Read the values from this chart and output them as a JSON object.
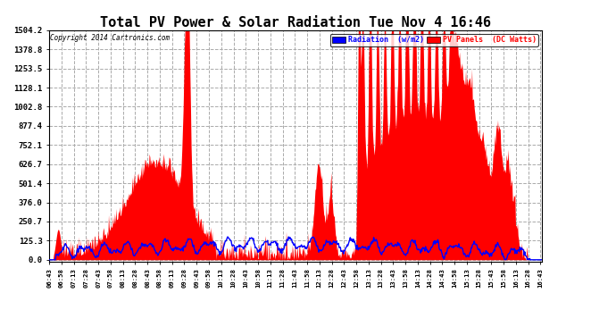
{
  "title": "Total PV Power & Solar Radiation Tue Nov 4 16:46",
  "copyright": "Copyright 2014 Cartronics.com",
  "legend_radiation": "Radiation  (w/m2)",
  "legend_pv": "PV Panels  (DC Watts)",
  "yticks": [
    0.0,
    125.3,
    250.7,
    376.0,
    501.4,
    626.7,
    752.1,
    877.4,
    1002.8,
    1128.1,
    1253.5,
    1378.8,
    1504.2
  ],
  "ymax": 1504.2,
  "ymin": 0.0,
  "bg_color": "#ffffff",
  "plot_bg_color": "#ffffff",
  "grid_color": "#aaaaaa",
  "pv_color": "#ff0000",
  "radiation_color": "#0000ff",
  "title_fontsize": 12
}
